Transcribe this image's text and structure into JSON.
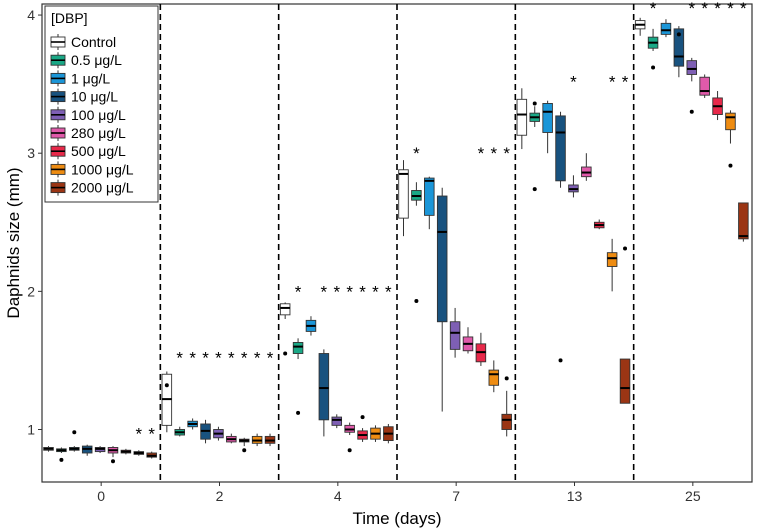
{
  "chart_data": {
    "type": "boxplot",
    "xlabel": "Time (days)",
    "ylabel": "Daphnids size (mm)",
    "ylim": [
      0.62,
      4.08
    ],
    "yticks": [
      1,
      2,
      3,
      4
    ],
    "ytick_labels": [
      "1",
      "2",
      "3",
      "4"
    ],
    "categories": [
      "0",
      "2",
      "4",
      "7",
      "13",
      "25"
    ],
    "legend": {
      "title": "[DBP]",
      "placement": "top-left",
      "entries": [
        "Control",
        "0.5 μg/L",
        "1 μg/L",
        "10 μg/L",
        "100 μg/L",
        "280 μg/L",
        "500 μg/L",
        "1000 μg/L",
        "2000 μg/L"
      ]
    },
    "series_colors": [
      "#ffffff",
      "#1aa886",
      "#1b96d8",
      "#18527f",
      "#7e5fb4",
      "#e05aaa",
      "#e8294a",
      "#ee8c12",
      "#9b3514"
    ],
    "significance_marker": "*",
    "groups": [
      {
        "day": "0",
        "boxes": [
          {
            "series": "Control",
            "q1": 0.85,
            "median": 0.86,
            "q3": 0.87,
            "low": 0.84,
            "high": 0.88,
            "outliers": []
          },
          {
            "series": "0.5 μg/L",
            "q1": 0.84,
            "median": 0.85,
            "q3": 0.86,
            "low": 0.83,
            "high": 0.87,
            "outliers": [
              0.78
            ]
          },
          {
            "series": "1 μg/L",
            "q1": 0.85,
            "median": 0.86,
            "q3": 0.87,
            "low": 0.84,
            "high": 0.88,
            "outliers": [
              0.98
            ]
          },
          {
            "series": "10 μg/L",
            "q1": 0.83,
            "median": 0.86,
            "q3": 0.88,
            "low": 0.81,
            "high": 0.89,
            "outliers": []
          },
          {
            "series": "100 μg/L",
            "q1": 0.84,
            "median": 0.86,
            "q3": 0.87,
            "low": 0.83,
            "high": 0.88,
            "outliers": []
          },
          {
            "series": "280 μg/L",
            "q1": 0.83,
            "median": 0.85,
            "q3": 0.87,
            "low": 0.8,
            "high": 0.88,
            "outliers": [
              0.77
            ]
          },
          {
            "series": "500 μg/L",
            "q1": 0.83,
            "median": 0.84,
            "q3": 0.85,
            "low": 0.82,
            "high": 0.86,
            "outliers": []
          },
          {
            "series": "1000 μg/L",
            "q1": 0.82,
            "median": 0.83,
            "q3": 0.84,
            "low": 0.81,
            "high": 0.85,
            "outliers": []
          },
          {
            "series": "2000 μg/L",
            "q1": 0.8,
            "median": 0.81,
            "q3": 0.83,
            "low": 0.79,
            "high": 0.84,
            "outliers": []
          }
        ],
        "significant": [
          false,
          false,
          false,
          false,
          false,
          false,
          false,
          true,
          true
        ]
      },
      {
        "day": "2",
        "boxes": [
          {
            "series": "Control",
            "q1": 1.03,
            "median": 1.22,
            "q3": 1.4,
            "low": 0.98,
            "high": 1.42,
            "outliers": [
              1.32
            ]
          },
          {
            "series": "0.5 μg/L",
            "q1": 0.96,
            "median": 0.98,
            "q3": 1.0,
            "low": 0.95,
            "high": 1.02,
            "outliers": []
          },
          {
            "series": "1 μg/L",
            "q1": 1.02,
            "median": 1.04,
            "q3": 1.06,
            "low": 1.0,
            "high": 1.08,
            "outliers": []
          },
          {
            "series": "10 μg/L",
            "q1": 0.93,
            "median": 0.99,
            "q3": 1.04,
            "low": 0.9,
            "high": 1.07,
            "outliers": []
          },
          {
            "series": "100 μg/L",
            "q1": 0.94,
            "median": 0.97,
            "q3": 1.0,
            "low": 0.92,
            "high": 1.02,
            "outliers": []
          },
          {
            "series": "280 μg/L",
            "q1": 0.91,
            "median": 0.93,
            "q3": 0.95,
            "low": 0.9,
            "high": 0.97,
            "outliers": []
          },
          {
            "series": "500 μg/L",
            "q1": 0.91,
            "median": 0.92,
            "q3": 0.93,
            "low": 0.88,
            "high": 0.94,
            "outliers": [
              0.85
            ]
          },
          {
            "series": "1000 μg/L",
            "q1": 0.9,
            "median": 0.92,
            "q3": 0.95,
            "low": 0.88,
            "high": 0.97,
            "outliers": []
          },
          {
            "series": "2000 μg/L",
            "q1": 0.9,
            "median": 0.92,
            "q3": 0.95,
            "low": 0.88,
            "high": 0.97,
            "outliers": []
          }
        ],
        "significant": [
          false,
          true,
          true,
          true,
          true,
          true,
          true,
          true,
          true
        ]
      },
      {
        "day": "4",
        "boxes": [
          {
            "series": "Control",
            "q1": 1.83,
            "median": 1.88,
            "q3": 1.91,
            "low": 1.8,
            "high": 1.92,
            "outliers": [
              1.55
            ]
          },
          {
            "series": "0.5 μg/L",
            "q1": 1.55,
            "median": 1.6,
            "q3": 1.63,
            "low": 1.51,
            "high": 1.66,
            "outliers": [
              1.12
            ]
          },
          {
            "series": "1 μg/L",
            "q1": 1.71,
            "median": 1.75,
            "q3": 1.79,
            "low": 1.68,
            "high": 1.82,
            "outliers": []
          },
          {
            "series": "10 μg/L",
            "q1": 1.07,
            "median": 1.3,
            "q3": 1.55,
            "low": 0.95,
            "high": 1.58,
            "outliers": []
          },
          {
            "series": "100 μg/L",
            "q1": 1.03,
            "median": 1.07,
            "q3": 1.09,
            "low": 1.01,
            "high": 1.11,
            "outliers": []
          },
          {
            "series": "280 μg/L",
            "q1": 0.98,
            "median": 1.0,
            "q3": 1.03,
            "low": 0.96,
            "high": 1.05,
            "outliers": [
              0.85
            ]
          },
          {
            "series": "500 μg/L",
            "q1": 0.93,
            "median": 0.96,
            "q3": 0.99,
            "low": 0.91,
            "high": 1.01,
            "outliers": [
              1.09
            ]
          },
          {
            "series": "1000 μg/L",
            "q1": 0.93,
            "median": 0.97,
            "q3": 1.01,
            "low": 0.91,
            "high": 1.03,
            "outliers": []
          },
          {
            "series": "2000 μg/L",
            "q1": 0.92,
            "median": 0.97,
            "q3": 1.02,
            "low": 0.9,
            "high": 1.04,
            "outliers": []
          }
        ],
        "significant": [
          false,
          true,
          false,
          true,
          true,
          true,
          true,
          true,
          true
        ]
      },
      {
        "day": "7",
        "boxes": [
          {
            "series": "Control",
            "q1": 2.53,
            "median": 2.85,
            "q3": 2.88,
            "low": 2.4,
            "high": 2.95,
            "outliers": []
          },
          {
            "series": "0.5 μg/L",
            "q1": 2.66,
            "median": 2.69,
            "q3": 2.73,
            "low": 2.62,
            "high": 2.79,
            "outliers": [
              1.93
            ]
          },
          {
            "series": "1 μg/L",
            "q1": 2.55,
            "median": 2.8,
            "q3": 2.82,
            "low": 2.45,
            "high": 2.83,
            "outliers": []
          },
          {
            "series": "10 μg/L",
            "q1": 1.78,
            "median": 2.43,
            "q3": 2.69,
            "low": 1.13,
            "high": 2.75,
            "outliers": []
          },
          {
            "series": "100 μg/L",
            "q1": 1.58,
            "median": 1.7,
            "q3": 1.78,
            "low": 1.52,
            "high": 1.88,
            "outliers": []
          },
          {
            "series": "280 μg/L",
            "q1": 1.57,
            "median": 1.62,
            "q3": 1.67,
            "low": 1.55,
            "high": 1.74,
            "outliers": []
          },
          {
            "series": "500 μg/L",
            "q1": 1.49,
            "median": 1.56,
            "q3": 1.62,
            "low": 1.46,
            "high": 1.7,
            "outliers": []
          },
          {
            "series": "1000 μg/L",
            "q1": 1.32,
            "median": 1.4,
            "q3": 1.43,
            "low": 1.27,
            "high": 1.5,
            "outliers": []
          },
          {
            "series": "2000 μg/L",
            "q1": 1.0,
            "median": 1.07,
            "q3": 1.11,
            "low": 0.95,
            "high": 1.28,
            "outliers": [
              1.37
            ]
          }
        ],
        "significant": [
          false,
          true,
          false,
          false,
          false,
          false,
          true,
          true,
          true
        ]
      },
      {
        "day": "13",
        "boxes": [
          {
            "series": "Control",
            "q1": 3.13,
            "median": 3.28,
            "q3": 3.39,
            "low": 3.03,
            "high": 3.47,
            "outliers": []
          },
          {
            "series": "0.5 μg/L",
            "q1": 3.23,
            "median": 3.26,
            "q3": 3.29,
            "low": 3.19,
            "high": 3.34,
            "outliers": [
              2.74,
              3.36
            ]
          },
          {
            "series": "1 μg/L",
            "q1": 3.15,
            "median": 3.3,
            "q3": 3.36,
            "low": 3.0,
            "high": 3.38,
            "outliers": []
          },
          {
            "series": "10 μg/L",
            "q1": 2.8,
            "median": 3.15,
            "q3": 3.27,
            "low": 2.75,
            "high": 3.3,
            "outliers": [
              1.5
            ]
          },
          {
            "series": "100 μg/L",
            "q1": 2.72,
            "median": 2.74,
            "q3": 2.77,
            "low": 2.68,
            "high": 2.84,
            "outliers": []
          },
          {
            "series": "280 μg/L",
            "q1": 2.83,
            "median": 2.86,
            "q3": 2.9,
            "low": 2.8,
            "high": 3.0,
            "outliers": []
          },
          {
            "series": "500 μg/L",
            "q1": 2.46,
            "median": 2.48,
            "q3": 2.5,
            "low": 2.45,
            "high": 2.52,
            "outliers": []
          },
          {
            "series": "1000 μg/L",
            "q1": 2.18,
            "median": 2.24,
            "q3": 2.28,
            "low": 2.0,
            "high": 2.38,
            "outliers": []
          },
          {
            "series": "2000 μg/L",
            "q1": 1.19,
            "median": 1.3,
            "q3": 1.51,
            "low": 1.19,
            "high": 1.51,
            "outliers": [
              2.31
            ]
          }
        ],
        "significant": [
          false,
          false,
          false,
          false,
          true,
          false,
          false,
          true,
          true
        ]
      },
      {
        "day": "25",
        "boxes": [
          {
            "series": "Control",
            "q1": 3.9,
            "median": 3.93,
            "q3": 3.96,
            "low": 3.85,
            "high": 3.98,
            "outliers": []
          },
          {
            "series": "0.5 μg/L",
            "q1": 3.76,
            "median": 3.8,
            "q3": 3.84,
            "low": 3.74,
            "high": 3.9,
            "outliers": [
              3.62
            ]
          },
          {
            "series": "1 μg/L",
            "q1": 3.86,
            "median": 3.89,
            "q3": 3.94,
            "low": 3.84,
            "high": 3.97,
            "outliers": []
          },
          {
            "series": "10 μg/L",
            "q1": 3.63,
            "median": 3.7,
            "q3": 3.9,
            "low": 3.55,
            "high": 3.92,
            "outliers": [
              3.86
            ]
          },
          {
            "series": "100 μg/L",
            "q1": 3.57,
            "median": 3.61,
            "q3": 3.67,
            "low": 3.52,
            "high": 3.69,
            "outliers": [
              3.3
            ]
          },
          {
            "series": "280 μg/L",
            "q1": 3.42,
            "median": 3.45,
            "q3": 3.55,
            "low": 3.4,
            "high": 3.57,
            "outliers": []
          },
          {
            "series": "500 μg/L",
            "q1": 3.28,
            "median": 3.34,
            "q3": 3.4,
            "low": 3.24,
            "high": 3.45,
            "outliers": []
          },
          {
            "series": "1000 μg/L",
            "q1": 3.17,
            "median": 3.26,
            "q3": 3.29,
            "low": 3.07,
            "high": 3.31,
            "outliers": [
              2.91
            ]
          },
          {
            "series": "2000 μg/L",
            "q1": 2.38,
            "median": 2.4,
            "q3": 2.64,
            "low": 2.36,
            "high": 2.64,
            "outliers": []
          }
        ],
        "significant": [
          false,
          true,
          false,
          false,
          true,
          true,
          true,
          true,
          true
        ]
      }
    ]
  }
}
